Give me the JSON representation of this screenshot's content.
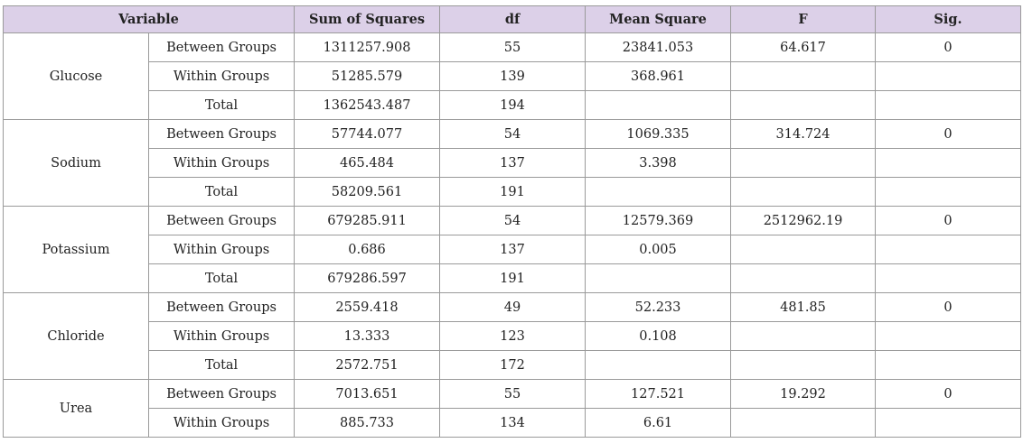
{
  "table": {
    "headers": [
      "Variable",
      "Sum of Squares",
      "df",
      "Mean Square",
      "F",
      "Sig."
    ],
    "groups": [
      {
        "variable": "Glucose",
        "rows": [
          {
            "source": "Between Groups",
            "ss": "1311257.908",
            "df": "55",
            "ms": "23841.053",
            "f": "64.617",
            "sig": "0"
          },
          {
            "source": "Within Groups",
            "ss": "51285.579",
            "df": "139",
            "ms": "368.961",
            "f": "",
            "sig": ""
          },
          {
            "source": "Total",
            "ss": "1362543.487",
            "df": "194",
            "ms": "",
            "f": "",
            "sig": ""
          }
        ]
      },
      {
        "variable": "Sodium",
        "rows": [
          {
            "source": "Between Groups",
            "ss": "57744.077",
            "df": "54",
            "ms": "1069.335",
            "f": "314.724",
            "sig": "0"
          },
          {
            "source": "Within Groups",
            "ss": "465.484",
            "df": "137",
            "ms": "3.398",
            "f": "",
            "sig": ""
          },
          {
            "source": "Total",
            "ss": "58209.561",
            "df": "191",
            "ms": "",
            "f": "",
            "sig": ""
          }
        ]
      },
      {
        "variable": "Potassium",
        "rows": [
          {
            "source": "Between Groups",
            "ss": "679285.911",
            "df": "54",
            "ms": "12579.369",
            "f": "2512962.19",
            "sig": "0"
          },
          {
            "source": "Within Groups",
            "ss": "0.686",
            "df": "137",
            "ms": "0.005",
            "f": "",
            "sig": ""
          },
          {
            "source": "Total",
            "ss": "679286.597",
            "df": "191",
            "ms": "",
            "f": "",
            "sig": ""
          }
        ]
      },
      {
        "variable": "Chloride",
        "rows": [
          {
            "source": "Between Groups",
            "ss": "2559.418",
            "df": "49",
            "ms": "52.233",
            "f": "481.85",
            "sig": "0"
          },
          {
            "source": "Within Groups",
            "ss": "13.333",
            "df": "123",
            "ms": "0.108",
            "f": "",
            "sig": ""
          },
          {
            "source": "Total",
            "ss": "2572.751",
            "df": "172",
            "ms": "",
            "f": "",
            "sig": ""
          }
        ]
      },
      {
        "variable": "Urea",
        "rows": [
          {
            "source": "Between Groups",
            "ss": "7013.651",
            "df": "55",
            "ms": "127.521",
            "f": "19.292",
            "sig": "0"
          },
          {
            "source": "Within Groups",
            "ss": "885.733",
            "df": "134",
            "ms": "6.61",
            "f": "",
            "sig": ""
          }
        ]
      }
    ]
  }
}
